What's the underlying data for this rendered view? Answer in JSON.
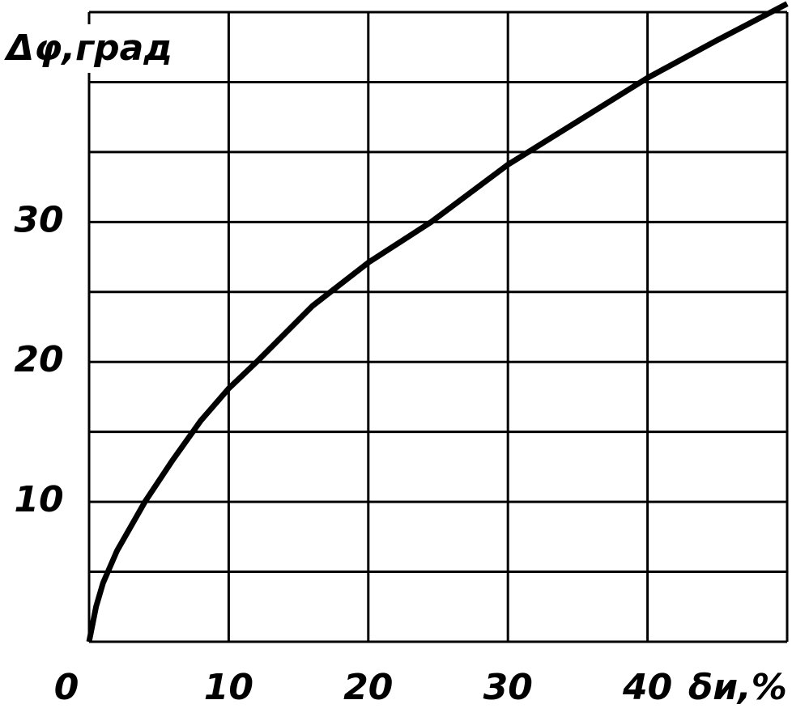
{
  "chart_data": {
    "type": "line",
    "x_label": "δи,%",
    "y_label": "Δφ,град",
    "x": [
      0,
      0.5,
      1,
      2,
      4,
      6,
      8,
      10,
      12,
      16,
      20,
      24.5,
      30,
      35,
      40,
      45,
      50
    ],
    "series": [
      {
        "color": "#000000",
        "values": [
          0,
          2.5,
          4.2,
          6.5,
          10,
          13,
          15.8,
          18.1,
          20,
          24,
          27.1,
          30,
          34.1,
          37.2,
          40.3,
          43,
          45.6
        ]
      }
    ],
    "xlim": [
      0,
      50
    ],
    "ylim": [
      0,
      45
    ],
    "xticks": [
      0,
      10,
      20,
      30,
      40
    ],
    "yticks": [
      10,
      20,
      30
    ],
    "xgrid": [
      0,
      10,
      20,
      30,
      40,
      50
    ],
    "ygrid": [
      0,
      5,
      10,
      15,
      20,
      25,
      30,
      35,
      40,
      45
    ]
  }
}
